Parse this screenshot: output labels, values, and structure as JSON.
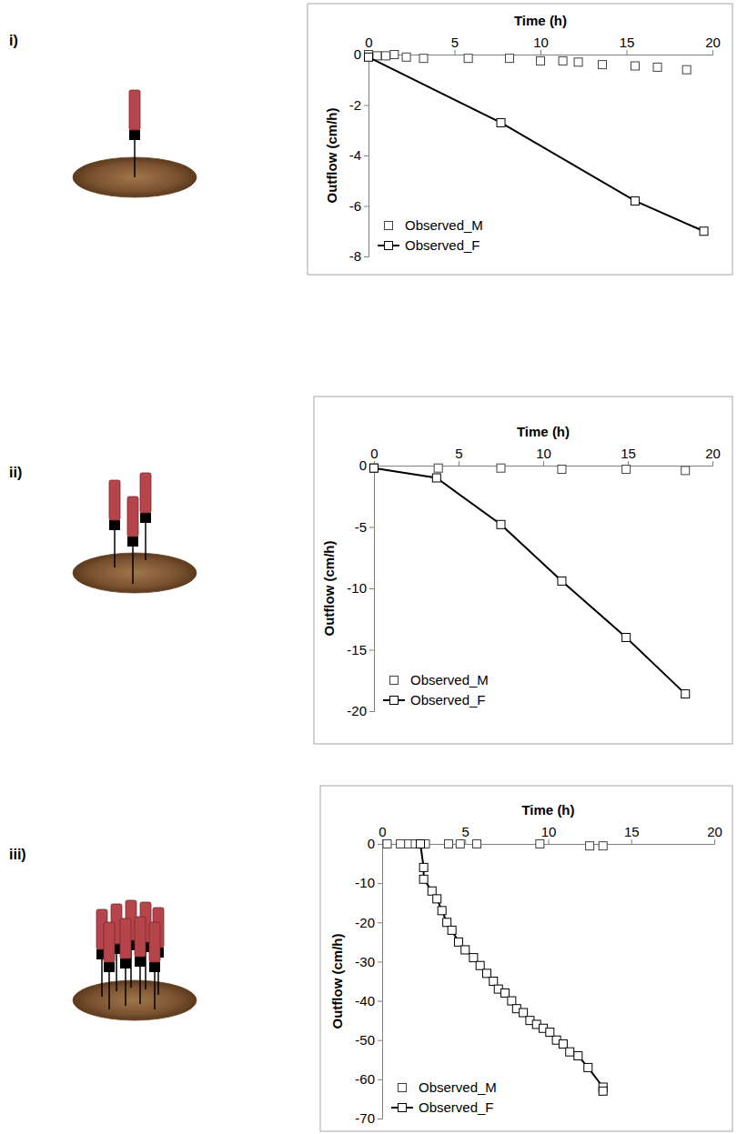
{
  "chart_data": [
    {
      "type": "line",
      "title": "i)",
      "x_label": "Time (h)",
      "y_label": "Outflow (cm/h)",
      "xlim": [
        0,
        20
      ],
      "xticks": [
        0,
        5,
        10,
        15,
        20
      ],
      "ylim": [
        -8,
        0
      ],
      "yticks": [
        0,
        -2,
        -4,
        -6,
        -8
      ],
      "legend": "lower left",
      "series": [
        {
          "name": "Observed_M",
          "color": "#404040",
          "marker": "square",
          "line_style": "none",
          "x": [
            0,
            0.5,
            1,
            1.5,
            2.2,
            3.2,
            5.8,
            8.2,
            10,
            11.3,
            12.2,
            13.6,
            15.5,
            16.8,
            18.5
          ],
          "values": [
            0,
            -0.05,
            -0.05,
            0,
            -0.1,
            -0.15,
            -0.15,
            -0.15,
            -0.25,
            -0.25,
            -0.3,
            -0.4,
            -0.45,
            -0.5,
            -0.6
          ]
        },
        {
          "name": "Observed_F",
          "color": "#000000",
          "marker": "square",
          "line_style": "solid",
          "x": [
            0,
            7.7,
            15.5,
            19.5
          ],
          "values": [
            -0.1,
            -2.7,
            -5.8,
            -7.0
          ]
        }
      ]
    },
    {
      "type": "line",
      "title": "ii)",
      "x_label": "Time (h)",
      "y_label": "Outflow (cm/h)",
      "xlim": [
        0,
        20
      ],
      "xticks": [
        0,
        5,
        10,
        15,
        20
      ],
      "ylim": [
        -20,
        0
      ],
      "yticks": [
        0,
        -5,
        -10,
        -15,
        -20
      ],
      "legend": "lower left",
      "series": [
        {
          "name": "Observed_M",
          "color": "#404040",
          "marker": "square",
          "line_style": "none",
          "x": [
            0,
            3.8,
            7.5,
            11.1,
            14.9,
            18.4
          ],
          "values": [
            -0.2,
            -0.2,
            -0.2,
            -0.3,
            -0.3,
            -0.4
          ]
        },
        {
          "name": "Observed_F",
          "color": "#000000",
          "marker": "square",
          "line_style": "solid",
          "x": [
            0,
            3.7,
            7.5,
            11.1,
            14.9,
            18.4
          ],
          "values": [
            -0.2,
            -1.0,
            -4.8,
            -9.4,
            -14.0,
            -18.6
          ]
        }
      ]
    },
    {
      "type": "line",
      "title": "iii)",
      "x_label": "Time (h)",
      "y_label": "Outflow (cm/h)",
      "xlim": [
        0,
        20
      ],
      "xticks": [
        0,
        5,
        10,
        15,
        20
      ],
      "ylim": [
        -70,
        0
      ],
      "yticks": [
        0,
        -10,
        -20,
        -30,
        -40,
        -50,
        -60,
        -70
      ],
      "legend": "lower left",
      "series": [
        {
          "name": "Observed_M",
          "color": "#404040",
          "marker": "square",
          "line_style": "none",
          "x": [
            0.3,
            1.1,
            1.6,
            2.0,
            2.3,
            2.6,
            4.0,
            4.7,
            5.7,
            9.5,
            12.5,
            13.3
          ],
          "values": [
            0,
            0,
            0,
            0,
            0,
            0,
            0,
            0,
            0,
            0,
            -0.5,
            -0.5
          ]
        },
        {
          "name": "Observed_F",
          "color": "#000000",
          "marker": "square",
          "line_style": "solid",
          "x": [
            2.3,
            2.5,
            2.5,
            3.0,
            3.3,
            3.6,
            3.9,
            4.2,
            4.6,
            5.0,
            5.5,
            5.9,
            6.3,
            6.7,
            7.0,
            7.4,
            7.8,
            8.1,
            8.5,
            8.9,
            9.3,
            9.7,
            10.1,
            10.5,
            10.9,
            11.3,
            11.8,
            12.4,
            13.3,
            13.3
          ],
          "values": [
            0,
            -6,
            -9,
            -12,
            -14,
            -17,
            -20,
            -22,
            -25,
            -27,
            -29,
            -31,
            -33,
            -35,
            -37,
            -38,
            -40,
            -42,
            -43,
            -45,
            -46,
            -47,
            -48,
            -50,
            -51,
            -53,
            -54,
            -57,
            -62,
            -63
          ]
        }
      ]
    }
  ]
}
